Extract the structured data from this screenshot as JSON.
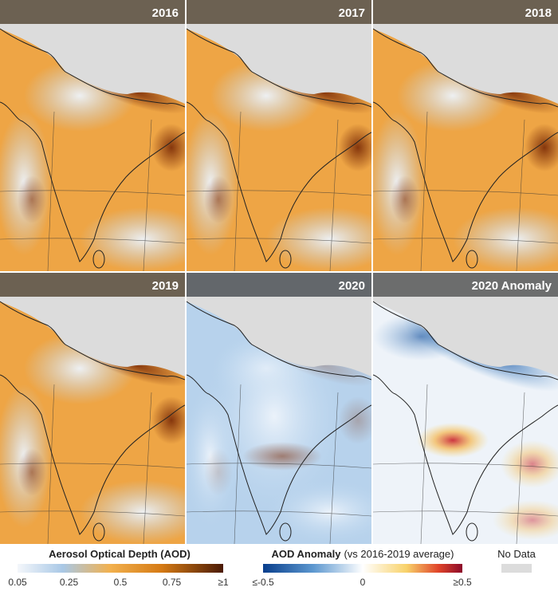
{
  "panels": [
    {
      "title": "2016"
    },
    {
      "title": "2017"
    },
    {
      "title": "2018"
    },
    {
      "title": "2019"
    },
    {
      "title": "2020"
    },
    {
      "title": "2020 Anomaly"
    }
  ],
  "legend": {
    "aod": {
      "title": "Aerosol Optical Depth (AOD)",
      "ticks": [
        "0.05",
        "0.25",
        "0.5",
        "0.75",
        "≥1"
      ]
    },
    "anomaly": {
      "title": "AOD Anomaly",
      "subtitle": "(vs 2016-2019 average)",
      "ticks": [
        "≤-0.5",
        "0",
        "≥0.5"
      ]
    },
    "nodata": {
      "label": "No Data"
    }
  }
}
